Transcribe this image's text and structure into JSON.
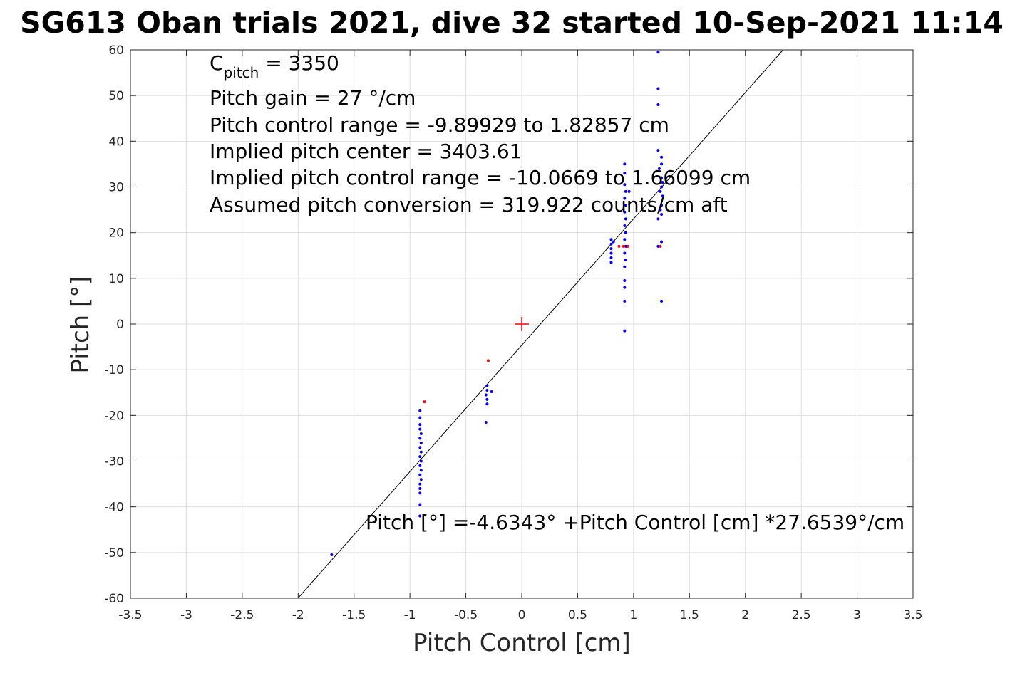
{
  "chart_data": {
    "type": "scatter",
    "title": "SG613 Oban trials 2021, dive 32 started 10-Sep-2021 11:14",
    "xlabel": "Pitch Control [cm]",
    "ylabel": "Pitch [°]",
    "xlim": [
      -3.5,
      3.5
    ],
    "ylim": [
      -60,
      60
    ],
    "xticks": [
      -3.5,
      -3,
      -2.5,
      -2,
      -1.5,
      -1,
      -0.5,
      0,
      0.5,
      1,
      1.5,
      2,
      2.5,
      3,
      3.5
    ],
    "yticks": [
      -60,
      -50,
      -40,
      -30,
      -20,
      -10,
      0,
      10,
      20,
      30,
      40,
      50,
      60
    ],
    "xtick_labels": [
      "-3.5",
      "-3",
      "-2.5",
      "-2",
      "-1.5",
      "-1",
      "-0.5",
      "0",
      "0.5",
      "1",
      "1.5",
      "2",
      "2.5",
      "3",
      "3.5"
    ],
    "ytick_labels": [
      "-60",
      "-50",
      "-40",
      "-30",
      "-20",
      "-10",
      "0",
      "10",
      "20",
      "30",
      "40",
      "50",
      "60"
    ],
    "grid": true,
    "colors": {
      "used_points": "#0000ff",
      "excluded_points": "#ff0000",
      "center_marker": "#ff0000",
      "fit_line": "#000000",
      "grid": "#dfdfdf",
      "axes": "#262626"
    },
    "fit_line": {
      "intercept": -4.6343,
      "slope": 27.6539
    },
    "center_marker": {
      "x": 0,
      "y": 0
    },
    "series": [
      {
        "values": [
          {
            "x": -1.7,
            "y": -50.5
          },
          {
            "x": -0.91,
            "y": -42.0
          },
          {
            "x": -0.91,
            "y": -39.5
          },
          {
            "x": -0.91,
            "y": -37.0
          },
          {
            "x": -0.91,
            "y": -36.0
          },
          {
            "x": -0.91,
            "y": -35.0
          },
          {
            "x": -0.9,
            "y": -34.0
          },
          {
            "x": -0.91,
            "y": -33.0
          },
          {
            "x": -0.9,
            "y": -32.0
          },
          {
            "x": -0.91,
            "y": -31.0
          },
          {
            "x": -0.9,
            "y": -30.0
          },
          {
            "x": -0.91,
            "y": -29.0
          },
          {
            "x": -0.9,
            "y": -28.0
          },
          {
            "x": -0.91,
            "y": -27.0
          },
          {
            "x": -0.9,
            "y": -26.0
          },
          {
            "x": -0.91,
            "y": -25.0
          },
          {
            "x": -0.9,
            "y": -24.0
          },
          {
            "x": -0.91,
            "y": -23.0
          },
          {
            "x": -0.91,
            "y": -22.0
          },
          {
            "x": -0.91,
            "y": -20.5
          },
          {
            "x": -0.91,
            "y": -19.0
          },
          {
            "x": -0.32,
            "y": -21.5
          },
          {
            "x": -0.31,
            "y": -17.5
          },
          {
            "x": -0.31,
            "y": -16.5
          },
          {
            "x": -0.32,
            "y": -15.5
          },
          {
            "x": -0.31,
            "y": -14.5
          },
          {
            "x": -0.31,
            "y": -13.5
          },
          {
            "x": -0.27,
            "y": -14.8
          },
          {
            "x": 0.8,
            "y": 13.5
          },
          {
            "x": 0.8,
            "y": 14.5
          },
          {
            "x": 0.8,
            "y": 15.5
          },
          {
            "x": 0.8,
            "y": 16.5
          },
          {
            "x": 0.8,
            "y": 17.5
          },
          {
            "x": 0.8,
            "y": 18.5
          },
          {
            "x": 0.82,
            "y": 18.0
          },
          {
            "x": 0.92,
            "y": -1.5
          },
          {
            "x": 0.92,
            "y": 5.0
          },
          {
            "x": 0.92,
            "y": 8.0
          },
          {
            "x": 0.92,
            "y": 9.5
          },
          {
            "x": 0.92,
            "y": 12.5
          },
          {
            "x": 0.93,
            "y": 14.0
          },
          {
            "x": 0.92,
            "y": 15.5
          },
          {
            "x": 0.93,
            "y": 17.0
          },
          {
            "x": 0.92,
            "y": 18.5
          },
          {
            "x": 0.93,
            "y": 20.0
          },
          {
            "x": 0.92,
            "y": 21.5
          },
          {
            "x": 0.93,
            "y": 23.0
          },
          {
            "x": 0.92,
            "y": 24.5
          },
          {
            "x": 0.93,
            "y": 26.0
          },
          {
            "x": 0.92,
            "y": 27.5
          },
          {
            "x": 0.93,
            "y": 29.0
          },
          {
            "x": 0.92,
            "y": 30.5
          },
          {
            "x": 0.92,
            "y": 33.0
          },
          {
            "x": 0.92,
            "y": 35.0
          },
          {
            "x": 0.96,
            "y": 29.0
          },
          {
            "x": 1.22,
            "y": 59.5
          },
          {
            "x": 1.22,
            "y": 51.5
          },
          {
            "x": 1.22,
            "y": 48.0
          },
          {
            "x": 1.22,
            "y": 38.0
          },
          {
            "x": 1.25,
            "y": 36.5
          },
          {
            "x": 1.25,
            "y": 35.0
          },
          {
            "x": 1.23,
            "y": 34.0
          },
          {
            "x": 1.25,
            "y": 32.0
          },
          {
            "x": 1.26,
            "y": 31.0
          },
          {
            "x": 1.25,
            "y": 30.0
          },
          {
            "x": 1.24,
            "y": 29.0
          },
          {
            "x": 1.26,
            "y": 28.0
          },
          {
            "x": 1.25,
            "y": 26.0
          },
          {
            "x": 1.24,
            "y": 25.0
          },
          {
            "x": 1.25,
            "y": 24.0
          },
          {
            "x": 1.22,
            "y": 23.0
          },
          {
            "x": 1.25,
            "y": 18.0
          },
          {
            "x": 1.22,
            "y": 17.0
          },
          {
            "x": 1.25,
            "y": 5.0
          }
        ]
      },
      {
        "values": [
          {
            "x": -0.87,
            "y": -17.0
          },
          {
            "x": -0.3,
            "y": -8.0
          },
          {
            "x": 0.87,
            "y": 17.0
          },
          {
            "x": 0.91,
            "y": 17.0
          },
          {
            "x": 0.95,
            "y": 17.0
          },
          {
            "x": 1.24,
            "y": 17.0
          }
        ]
      }
    ],
    "annotations": {
      "c_pitch_base": "C",
      "c_pitch_sub": "pitch",
      "c_pitch_value": " = 3350",
      "pitch_gain": "Pitch gain = 27 °/cm",
      "control_range": "Pitch control range = -9.89929 to 1.82857 cm",
      "implied_center": "Implied pitch center = 3403.61",
      "implied_range": "Implied pitch control range = -10.0669 to 1.66099 cm",
      "conversion": "Assumed pitch conversion = 319.922 counts/cm aft",
      "fit_equation": "Pitch [°] =-4.6343° +Pitch Control [cm] *27.6539°/cm"
    }
  }
}
